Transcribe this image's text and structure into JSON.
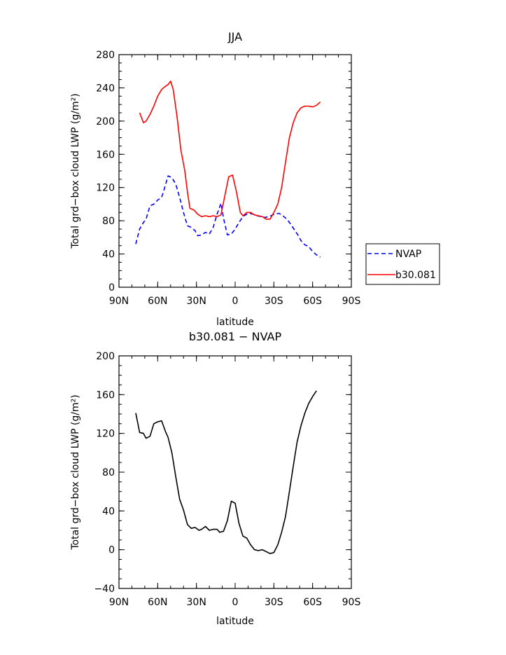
{
  "chart_data": [
    {
      "type": "line",
      "title": "JJA",
      "xlabel": "latitude",
      "ylabel": "Total grd−box cloud LWP (g/m²)",
      "xlim": [
        90,
        -90
      ],
      "ylim": [
        0,
        280
      ],
      "xticks": [
        90,
        60,
        30,
        0,
        -30,
        -60,
        -90
      ],
      "xtick_labels": [
        "90N",
        "60N",
        "30N",
        "0",
        "30S",
        "60S",
        "90S"
      ],
      "yticks": [
        0,
        40,
        80,
        120,
        160,
        200,
        240,
        280
      ],
      "ytick_labels": [
        "0",
        "40",
        "80",
        "120",
        "160",
        "200",
        "240",
        "280"
      ],
      "legend_position": "right",
      "series": [
        {
          "name": "NVAP",
          "color": "#0000ff",
          "dash": true,
          "x": [
            77,
            74,
            71,
            69,
            66,
            63,
            60,
            57,
            54,
            52,
            49,
            46,
            43,
            40,
            37,
            34,
            31,
            29,
            26,
            23,
            20,
            17,
            14,
            11,
            9,
            6,
            3,
            0,
            -3,
            -6,
            -9,
            -11,
            -14,
            -17,
            -20,
            -23,
            -26,
            -29,
            -31,
            -34,
            -37,
            -40,
            -43,
            -46,
            -49,
            -51,
            -54,
            -57,
            -60,
            -63,
            -66
          ],
          "y": [
            52,
            70,
            78,
            82,
            98,
            100,
            105,
            108,
            123,
            134,
            132,
            124,
            108,
            90,
            74,
            72,
            68,
            62,
            63,
            66,
            64,
            72,
            88,
            101,
            83,
            63,
            64,
            70,
            78,
            85,
            88,
            89,
            88,
            86,
            85,
            84,
            85,
            87,
            88,
            89,
            86,
            82,
            76,
            69,
            62,
            56,
            51,
            49,
            43,
            39,
            36
          ]
        },
        {
          "name": "b30.081",
          "color": "#ff0000",
          "dash": false,
          "x": [
            74,
            71,
            69,
            66,
            63,
            60,
            57,
            54,
            52,
            50,
            48,
            45,
            42,
            39,
            37,
            35,
            32,
            29,
            26,
            23,
            20,
            17,
            14,
            11,
            8,
            5,
            2,
            -1,
            -4,
            -6,
            -9,
            -12,
            -15,
            -18,
            -21,
            -24,
            -27,
            -30,
            -33,
            -36,
            -39,
            -42,
            -45,
            -48,
            -51,
            -54,
            -57,
            -60,
            -63,
            -66
          ],
          "y": [
            210,
            198,
            200,
            208,
            218,
            230,
            238,
            242,
            244,
            248,
            238,
            205,
            165,
            140,
            115,
            95,
            93,
            88,
            85,
            86,
            85,
            86,
            85,
            87,
            110,
            133,
            135,
            115,
            90,
            86,
            90,
            90,
            87,
            86,
            85,
            82,
            82,
            90,
            100,
            120,
            150,
            180,
            198,
            210,
            216,
            218,
            218,
            217,
            219,
            223
          ]
        }
      ]
    },
    {
      "type": "line",
      "title": "b30.081 − NVAP",
      "xlabel": "latitude",
      "ylabel": "Total grd−box cloud LWP (g/m²)",
      "xlim": [
        90,
        -90
      ],
      "ylim": [
        -40,
        200
      ],
      "xticks": [
        90,
        60,
        30,
        0,
        -30,
        -60,
        -90
      ],
      "xtick_labels": [
        "90N",
        "60N",
        "30N",
        "0",
        "30S",
        "60S",
        "90S"
      ],
      "yticks": [
        -40,
        0,
        40,
        80,
        120,
        160,
        200
      ],
      "ytick_labels": [
        "−40",
        "0",
        "40",
        "80",
        "120",
        "160",
        "200"
      ],
      "series": [
        {
          "color": "#000000",
          "dash": false,
          "x": [
            77,
            74,
            71,
            69,
            66,
            63,
            60,
            57,
            54,
            52,
            49,
            46,
            43,
            40,
            37,
            34,
            31,
            28,
            26,
            23,
            20,
            17,
            14,
            12,
            9,
            6,
            3,
            0,
            -3,
            -6,
            -9,
            -12,
            -15,
            -18,
            -21,
            -24,
            -27,
            -30,
            -33,
            -36,
            -39,
            -42,
            -45,
            -48,
            -51,
            -54,
            -57,
            -60,
            -63
          ],
          "y": [
            141,
            121,
            120,
            115,
            117,
            130,
            132,
            133,
            122,
            116,
            100,
            75,
            52,
            41,
            26,
            22,
            23,
            20,
            21,
            24,
            20,
            21,
            21,
            18,
            19,
            30,
            50,
            48,
            27,
            14,
            12,
            5,
            0,
            -1,
            0,
            -2,
            -4,
            -3,
            5,
            18,
            34,
            60,
            86,
            111,
            128,
            141,
            151,
            158,
            164
          ]
        }
      ]
    }
  ]
}
